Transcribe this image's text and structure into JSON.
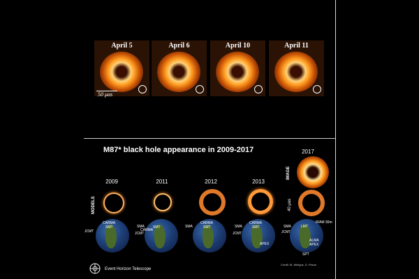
{
  "top_panels": [
    {
      "label": "April 5"
    },
    {
      "label": "April 6"
    },
    {
      "label": "April 10"
    },
    {
      "label": "April 11"
    }
  ],
  "scale_label": "50 μas",
  "bottom": {
    "title": "M87* black hole appearance in 2009-2017",
    "years": [
      "2009",
      "2011",
      "2012",
      "2013"
    ],
    "year_2017": "2017",
    "models_label": "MODELS",
    "image_label": "IMAGE",
    "scale_label": "40 μas",
    "station_labels": {
      "g1": [
        "CARMA",
        "SMT",
        "JCMT"
      ],
      "g2": [
        "SMA",
        "CARMA",
        "SMT",
        "JCMT"
      ],
      "g3": [
        "CARMA",
        "SMT",
        "SMA"
      ],
      "g4": [
        "SMA",
        "CARMA",
        "SMT",
        "JCMT",
        "APEX"
      ],
      "g5": [
        "IRAM 30m",
        "SMA",
        "LMT",
        "ALMA",
        "APEX",
        "SPT",
        "JCMT"
      ]
    },
    "logo_text": "Event Horizon Telescope",
    "credit": "Credit: M. Wielgus, D. Pesce"
  }
}
